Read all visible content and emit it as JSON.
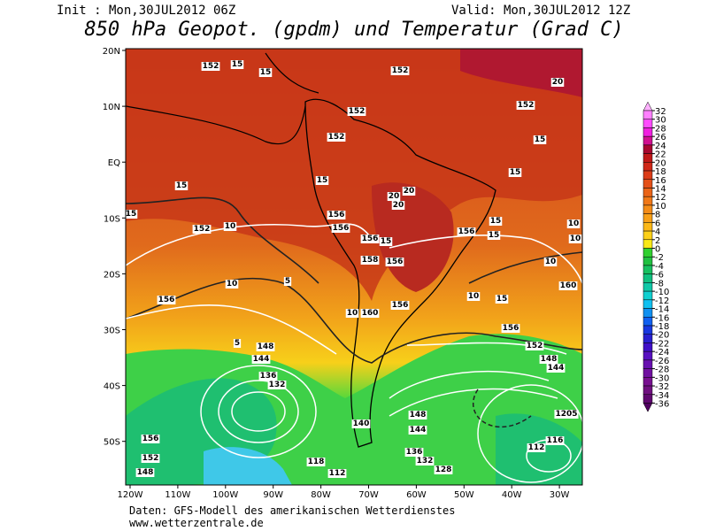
{
  "header": {
    "init": "Init : Mon,30JUL2012 06Z",
    "valid": "Valid: Mon,30JUL2012 12Z",
    "title": "850 hPa Geopot. (gpdm) und Temperatur (Grad C)"
  },
  "axes": {
    "lon_labels": [
      "120W",
      "110W",
      "100W",
      "90W",
      "80W",
      "70W",
      "60W",
      "50W",
      "40W",
      "30W"
    ],
    "lat_labels": [
      "20N",
      "10N",
      "EQ",
      "10S",
      "20S",
      "30S",
      "40S",
      "50S"
    ]
  },
  "colorbar": {
    "levels": [
      32,
      30,
      28,
      26,
      24,
      22,
      20,
      18,
      16,
      14,
      12,
      10,
      8,
      6,
      4,
      2,
      0,
      -2,
      -4,
      -6,
      -8,
      -10,
      -12,
      -14,
      -16,
      -18,
      -20,
      -22,
      -24,
      -26,
      -28,
      -30,
      -32,
      -34,
      -36
    ],
    "colors": [
      "#ffb0ff",
      "#ff80ff",
      "#ff4cff",
      "#f020e0",
      "#d01090",
      "#a80830",
      "#c01818",
      "#d02818",
      "#dc3c18",
      "#e45018",
      "#ea6418",
      "#f07818",
      "#f48c18",
      "#f8a018",
      "#fbb818",
      "#fcd018",
      "#f8e818",
      "#30d030",
      "#20c040",
      "#18c060",
      "#10c080",
      "#10c8a8",
      "#10d0d0",
      "#10c0f0",
      "#1090f0",
      "#1060f0",
      "#1838e0",
      "#2820d0",
      "#4010c8",
      "#5810c0",
      "#6810b0",
      "#7010a0",
      "#781090",
      "#701080",
      "#600870",
      "#500060"
    ]
  },
  "contour_labels": [
    "152",
    "15",
    "15",
    "152",
    "20",
    "152",
    "152",
    "152",
    "15",
    "15",
    "15",
    "20",
    "20",
    "20",
    "15",
    "15",
    "152",
    "10",
    "156",
    "156",
    "156",
    "15",
    "156",
    "15",
    "10",
    "15",
    "10",
    "10",
    "158",
    "156",
    "10",
    "5",
    "156",
    "160",
    "10",
    "15",
    "156",
    "160",
    "10",
    "156",
    "148",
    "152",
    "5",
    "144",
    "148",
    "136",
    "132",
    "144",
    "140",
    "148",
    "144",
    "156",
    "152",
    "116",
    "112",
    "136",
    "132",
    "118",
    "128",
    "112",
    "148",
    "1205"
  ],
  "footer": {
    "source": "Daten: GFS-Modell des amerikanischen Wetterdienstes",
    "url": "www.wetterzentrale.de"
  }
}
